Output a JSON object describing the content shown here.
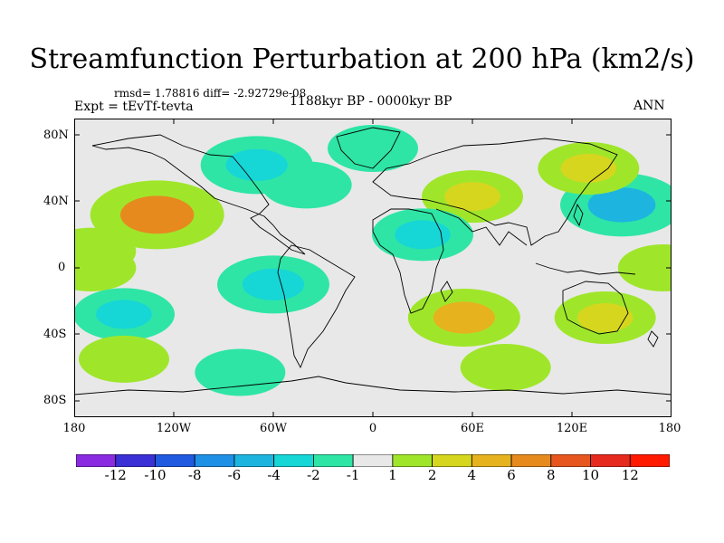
{
  "title": "Streamfunction Perturbation at 200 hPa (km2/s)",
  "stats_text": "rmsd= 1.78816 diff= -2.92729e-08",
  "experiment_text": "Expt = tEvTf-tevta",
  "period_text": "1188kyr BP - 0000kyr BP",
  "season_text": "ANN",
  "lat_ticks": [
    "80N",
    "40N",
    "0",
    "40S",
    "80S"
  ],
  "lon_ticks": [
    "180",
    "120W",
    "60W",
    "0",
    "60E",
    "120E",
    "180"
  ],
  "colorbar": {
    "labels": [
      "-12",
      "-10",
      "-8",
      "-6",
      "-4",
      "-2",
      "-1",
      "1",
      "2",
      "4",
      "6",
      "8",
      "10",
      "12"
    ],
    "colors": [
      "#8a2be2",
      "#3b2fd6",
      "#1f5ae0",
      "#1e90e6",
      "#1db5e0",
      "#16d6d6",
      "#2ee5a6",
      "#e8e8e8",
      "#9fe62b",
      "#d6d61e",
      "#e6b21e",
      "#e68a1e",
      "#e6561e",
      "#e62a1e",
      "#ff1a00"
    ]
  },
  "chart_data": {
    "type": "contour-map",
    "variable": "Streamfunction Perturbation at 200 hPa",
    "units": "km2/s",
    "levels": [
      -12,
      -10,
      -8,
      -6,
      -4,
      -2,
      -1,
      1,
      2,
      4,
      6,
      8,
      10,
      12
    ],
    "xlim": [
      -180,
      180
    ],
    "ylim": [
      -90,
      90
    ],
    "anomalies": [
      {
        "lon": -130,
        "lat": 32,
        "value": 6
      },
      {
        "lon": -170,
        "lat": 10,
        "value": 2
      },
      {
        "lon": -170,
        "lat": 0,
        "value": 2
      },
      {
        "lon": -150,
        "lat": -28,
        "value": -3
      },
      {
        "lon": -60,
        "lat": -10,
        "value": -4
      },
      {
        "lon": -40,
        "lat": 50,
        "value": -2
      },
      {
        "lon": -70,
        "lat": 62,
        "value": -4
      },
      {
        "lon": 0,
        "lat": 72,
        "value": -2
      },
      {
        "lon": 60,
        "lat": 43,
        "value": 3
      },
      {
        "lon": 30,
        "lat": 20,
        "value": -3
      },
      {
        "lon": 55,
        "lat": -30,
        "value": 4
      },
      {
        "lon": 150,
        "lat": 38,
        "value": -5
      },
      {
        "lon": 130,
        "lat": 60,
        "value": 3
      },
      {
        "lon": 175,
        "lat": 0,
        "value": 2
      },
      {
        "lon": 140,
        "lat": -30,
        "value": 3
      },
      {
        "lon": -80,
        "lat": -63,
        "value": -2
      },
      {
        "lon": -150,
        "lat": -55,
        "value": 2
      },
      {
        "lon": 80,
        "lat": -60,
        "value": 2
      }
    ]
  }
}
